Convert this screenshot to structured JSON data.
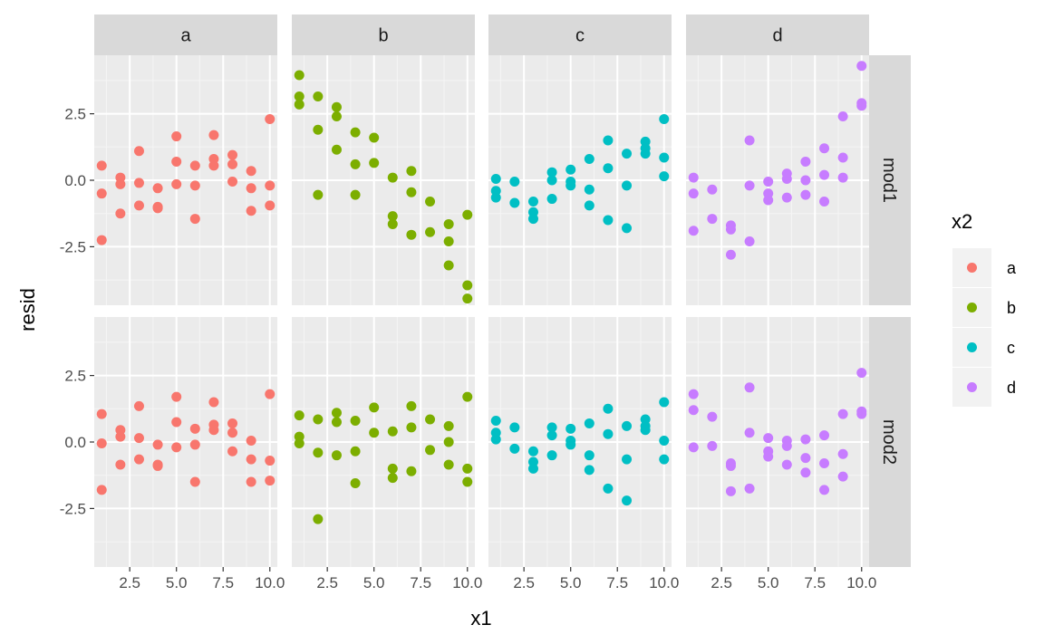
{
  "chart_data": {
    "type": "scatter",
    "xlabel": "x1",
    "ylabel": "resid",
    "xlim": [
      0.6,
      10.4
    ],
    "ylim": [
      -4.7,
      4.7
    ],
    "x_ticks": [
      2.5,
      5.0,
      7.5,
      10.0
    ],
    "x_tick_labels": [
      "2.5",
      "5.0",
      "7.5",
      "10.0"
    ],
    "y_ticks": [
      -2.5,
      0.0,
      2.5
    ],
    "y_tick_labels": [
      "-2.5",
      "0.0",
      "2.5"
    ],
    "facet_cols": [
      "a",
      "b",
      "c",
      "d"
    ],
    "facet_rows": [
      "mod1",
      "mod2"
    ],
    "grid": true,
    "legend": {
      "title": "x2",
      "position": "right",
      "entries": [
        {
          "label": "a",
          "color": "#F8766D"
        },
        {
          "label": "b",
          "color": "#7CAE00"
        },
        {
          "label": "c",
          "color": "#00BFC4"
        },
        {
          "label": "d",
          "color": "#C77CFF"
        }
      ]
    },
    "panels": [
      {
        "row": "mod1",
        "col": "a",
        "color": "#F8766D",
        "points": [
          [
            1,
            0.55
          ],
          [
            1,
            -0.5
          ],
          [
            1,
            -2.25
          ],
          [
            2,
            0.1
          ],
          [
            2,
            -0.15
          ],
          [
            2,
            -1.25
          ],
          [
            3,
            1.1
          ],
          [
            3,
            -0.1
          ],
          [
            3,
            -0.95
          ],
          [
            4,
            -0.3
          ],
          [
            4,
            -1.0
          ],
          [
            4,
            -1.05
          ],
          [
            5,
            1.65
          ],
          [
            5,
            0.7
          ],
          [
            5,
            -0.15
          ],
          [
            6,
            0.55
          ],
          [
            6,
            -0.2
          ],
          [
            6,
            -1.45
          ],
          [
            7,
            1.7
          ],
          [
            7,
            0.8
          ],
          [
            7,
            0.55
          ],
          [
            8,
            0.95
          ],
          [
            8,
            0.6
          ],
          [
            8,
            -0.05
          ],
          [
            9,
            0.35
          ],
          [
            9,
            -0.3
          ],
          [
            9,
            -1.15
          ],
          [
            10,
            2.3
          ],
          [
            10,
            -0.2
          ],
          [
            10,
            -0.95
          ]
        ]
      },
      {
        "row": "mod1",
        "col": "b",
        "color": "#7CAE00",
        "points": [
          [
            1,
            3.95
          ],
          [
            1,
            3.15
          ],
          [
            1,
            2.85
          ],
          [
            2,
            3.15
          ],
          [
            2,
            1.9
          ],
          [
            2,
            -0.55
          ],
          [
            3,
            2.75
          ],
          [
            3,
            2.4
          ],
          [
            3,
            1.15
          ],
          [
            4,
            1.8
          ],
          [
            4,
            0.6
          ],
          [
            4,
            -0.55
          ],
          [
            5,
            1.6
          ],
          [
            5,
            0.65
          ],
          [
            6,
            0.1
          ],
          [
            6,
            -1.35
          ],
          [
            6,
            -1.65
          ],
          [
            7,
            0.35
          ],
          [
            7,
            -0.45
          ],
          [
            7,
            -2.05
          ],
          [
            8,
            -0.8
          ],
          [
            8,
            -1.95
          ],
          [
            9,
            -1.65
          ],
          [
            9,
            -2.3
          ],
          [
            9,
            -3.2
          ],
          [
            10,
            -1.3
          ],
          [
            10,
            -3.95
          ],
          [
            10,
            -4.45
          ]
        ]
      },
      {
        "row": "mod1",
        "col": "c",
        "color": "#00BFC4",
        "points": [
          [
            1,
            0.05
          ],
          [
            1,
            -0.4
          ],
          [
            1,
            -0.65
          ],
          [
            2,
            -0.05
          ],
          [
            2,
            -0.85
          ],
          [
            3,
            -0.8
          ],
          [
            3,
            -1.2
          ],
          [
            3,
            -1.45
          ],
          [
            4,
            0.3
          ],
          [
            4,
            0.0
          ],
          [
            4,
            -0.7
          ],
          [
            5,
            0.4
          ],
          [
            5,
            -0.05
          ],
          [
            5,
            -0.2
          ],
          [
            6,
            0.8
          ],
          [
            6,
            -0.35
          ],
          [
            6,
            -0.95
          ],
          [
            7,
            1.5
          ],
          [
            7,
            0.45
          ],
          [
            7,
            -1.5
          ],
          [
            8,
            1.0
          ],
          [
            8,
            -0.2
          ],
          [
            8,
            -1.8
          ],
          [
            9,
            1.45
          ],
          [
            9,
            1.2
          ],
          [
            9,
            1.0
          ],
          [
            10,
            2.3
          ],
          [
            10,
            0.85
          ],
          [
            10,
            0.15
          ]
        ]
      },
      {
        "row": "mod1",
        "col": "d",
        "color": "#C77CFF",
        "points": [
          [
            1,
            0.1
          ],
          [
            1,
            -0.5
          ],
          [
            1,
            -1.9
          ],
          [
            2,
            -0.35
          ],
          [
            2,
            -1.45
          ],
          [
            3,
            -1.7
          ],
          [
            3,
            -1.85
          ],
          [
            3,
            -2.8
          ],
          [
            4,
            1.5
          ],
          [
            4,
            -0.2
          ],
          [
            4,
            -2.3
          ],
          [
            5,
            -0.05
          ],
          [
            5,
            -0.5
          ],
          [
            5,
            -0.75
          ],
          [
            6,
            0.25
          ],
          [
            6,
            0.05
          ],
          [
            6,
            -0.65
          ],
          [
            7,
            0.7
          ],
          [
            7,
            0.0
          ],
          [
            7,
            -0.55
          ],
          [
            8,
            1.2
          ],
          [
            8,
            0.2
          ],
          [
            8,
            -0.8
          ],
          [
            9,
            2.4
          ],
          [
            9,
            0.85
          ],
          [
            9,
            0.1
          ],
          [
            10,
            4.3
          ],
          [
            10,
            2.9
          ],
          [
            10,
            2.8
          ]
        ]
      },
      {
        "row": "mod2",
        "col": "a",
        "color": "#F8766D",
        "points": [
          [
            1,
            1.05
          ],
          [
            1,
            -0.05
          ],
          [
            1,
            -1.8
          ],
          [
            2,
            0.45
          ],
          [
            2,
            0.2
          ],
          [
            2,
            -0.85
          ],
          [
            3,
            1.35
          ],
          [
            3,
            0.15
          ],
          [
            3,
            -0.65
          ],
          [
            4,
            -0.1
          ],
          [
            4,
            -0.85
          ],
          [
            4,
            -0.9
          ],
          [
            5,
            1.7
          ],
          [
            5,
            0.75
          ],
          [
            5,
            -0.2
          ],
          [
            6,
            0.5
          ],
          [
            6,
            -0.1
          ],
          [
            6,
            -1.5
          ],
          [
            7,
            1.5
          ],
          [
            7,
            0.65
          ],
          [
            7,
            0.45
          ],
          [
            8,
            0.7
          ],
          [
            8,
            0.35
          ],
          [
            8,
            -0.35
          ],
          [
            9,
            0.05
          ],
          [
            9,
            -0.65
          ],
          [
            9,
            -1.5
          ],
          [
            10,
            1.8
          ],
          [
            10,
            -0.7
          ],
          [
            10,
            -1.45
          ]
        ]
      },
      {
        "row": "mod2",
        "col": "b",
        "color": "#7CAE00",
        "points": [
          [
            1,
            1.0
          ],
          [
            1,
            0.2
          ],
          [
            1,
            -0.05
          ],
          [
            2,
            0.85
          ],
          [
            2,
            -0.4
          ],
          [
            2,
            -2.9
          ],
          [
            3,
            1.1
          ],
          [
            3,
            0.75
          ],
          [
            3,
            -0.5
          ],
          [
            4,
            0.8
          ],
          [
            4,
            -0.35
          ],
          [
            4,
            -1.55
          ],
          [
            5,
            1.3
          ],
          [
            5,
            0.35
          ],
          [
            6,
            0.4
          ],
          [
            6,
            -1.0
          ],
          [
            6,
            -1.35
          ],
          [
            7,
            1.35
          ],
          [
            7,
            0.55
          ],
          [
            7,
            -1.1
          ],
          [
            8,
            0.85
          ],
          [
            8,
            -0.3
          ],
          [
            9,
            0.6
          ],
          [
            9,
            0.0
          ],
          [
            9,
            -0.85
          ],
          [
            10,
            1.7
          ],
          [
            10,
            -1.0
          ],
          [
            10,
            -1.5
          ]
        ]
      },
      {
        "row": "mod2",
        "col": "c",
        "color": "#00BFC4",
        "points": [
          [
            1,
            0.8
          ],
          [
            1,
            0.35
          ],
          [
            1,
            0.1
          ],
          [
            2,
            0.55
          ],
          [
            2,
            -0.25
          ],
          [
            3,
            -0.35
          ],
          [
            3,
            -0.75
          ],
          [
            3,
            -1.0
          ],
          [
            4,
            0.55
          ],
          [
            4,
            0.25
          ],
          [
            4,
            -0.5
          ],
          [
            5,
            0.5
          ],
          [
            5,
            0.05
          ],
          [
            5,
            -0.1
          ],
          [
            6,
            0.7
          ],
          [
            6,
            -0.5
          ],
          [
            6,
            -1.05
          ],
          [
            7,
            1.25
          ],
          [
            7,
            0.3
          ],
          [
            7,
            -1.75
          ],
          [
            8,
            0.6
          ],
          [
            8,
            -0.65
          ],
          [
            8,
            -2.2
          ],
          [
            9,
            0.85
          ],
          [
            9,
            0.6
          ],
          [
            9,
            0.45
          ],
          [
            10,
            1.5
          ],
          [
            10,
            0.05
          ],
          [
            10,
            -0.65
          ]
        ]
      },
      {
        "row": "mod2",
        "col": "d",
        "color": "#C77CFF",
        "points": [
          [
            1,
            1.8
          ],
          [
            1,
            1.2
          ],
          [
            1,
            -0.2
          ],
          [
            2,
            0.95
          ],
          [
            2,
            -0.15
          ],
          [
            3,
            -0.8
          ],
          [
            3,
            -0.9
          ],
          [
            3,
            -1.85
          ],
          [
            4,
            2.05
          ],
          [
            4,
            0.35
          ],
          [
            4,
            -1.75
          ],
          [
            5,
            0.15
          ],
          [
            5,
            -0.35
          ],
          [
            5,
            -0.55
          ],
          [
            6,
            0.05
          ],
          [
            6,
            -0.15
          ],
          [
            6,
            -0.85
          ],
          [
            7,
            0.1
          ],
          [
            7,
            -0.6
          ],
          [
            7,
            -1.15
          ],
          [
            8,
            0.25
          ],
          [
            8,
            -0.8
          ],
          [
            8,
            -1.8
          ],
          [
            9,
            1.05
          ],
          [
            9,
            -0.45
          ],
          [
            9,
            -1.3
          ],
          [
            10,
            2.6
          ],
          [
            10,
            1.15
          ],
          [
            10,
            1.05
          ]
        ]
      }
    ]
  }
}
